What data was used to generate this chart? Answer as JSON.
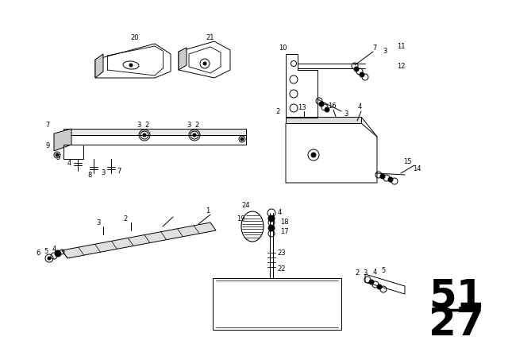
{
  "bg_color": "#ffffff",
  "line_color": "#000000",
  "figsize": [
    6.4,
    4.48
  ],
  "dpi": 100
}
